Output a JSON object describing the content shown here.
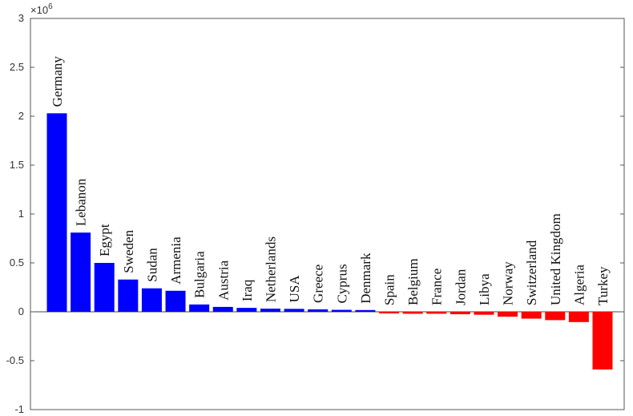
{
  "chart_data": {
    "type": "bar",
    "categories": [
      "Germany",
      "Lebanon",
      "Egypt",
      "Sweden",
      "Sudan",
      "Armenia",
      "Bulgaria",
      "Austria",
      "Iraq",
      "Netherlands",
      "USA",
      "Greece",
      "Cyprus",
      "Denmark",
      "Spain",
      "Belgium",
      "France",
      "Jordan",
      "Libya",
      "Norway",
      "Switzerland",
      "United Kingdom",
      "Algeria",
      "Turkey"
    ],
    "values": [
      2030000,
      810000,
      500000,
      330000,
      240000,
      215000,
      75000,
      50000,
      40000,
      32000,
      30000,
      25000,
      20000,
      18000,
      -15000,
      -20000,
      -20000,
      -25000,
      -30000,
      -50000,
      -70000,
      -85000,
      -105000,
      -590000
    ],
    "ylim": [
      -1000000,
      3000000
    ],
    "ytick_labels": [
      "-1",
      "-0.5",
      "0",
      "0.5",
      "1",
      "1.5",
      "2",
      "2.5",
      "3"
    ],
    "ytick_values": [
      -1000000,
      -500000,
      0,
      500000,
      1000000,
      1500000,
      2000000,
      2500000,
      3000000
    ],
    "exponent_label": "×10",
    "exponent_power": "6",
    "title": "",
    "xlabel": "",
    "ylabel": "",
    "positive_color": "#0000ff",
    "negative_color": "#ff0000"
  }
}
